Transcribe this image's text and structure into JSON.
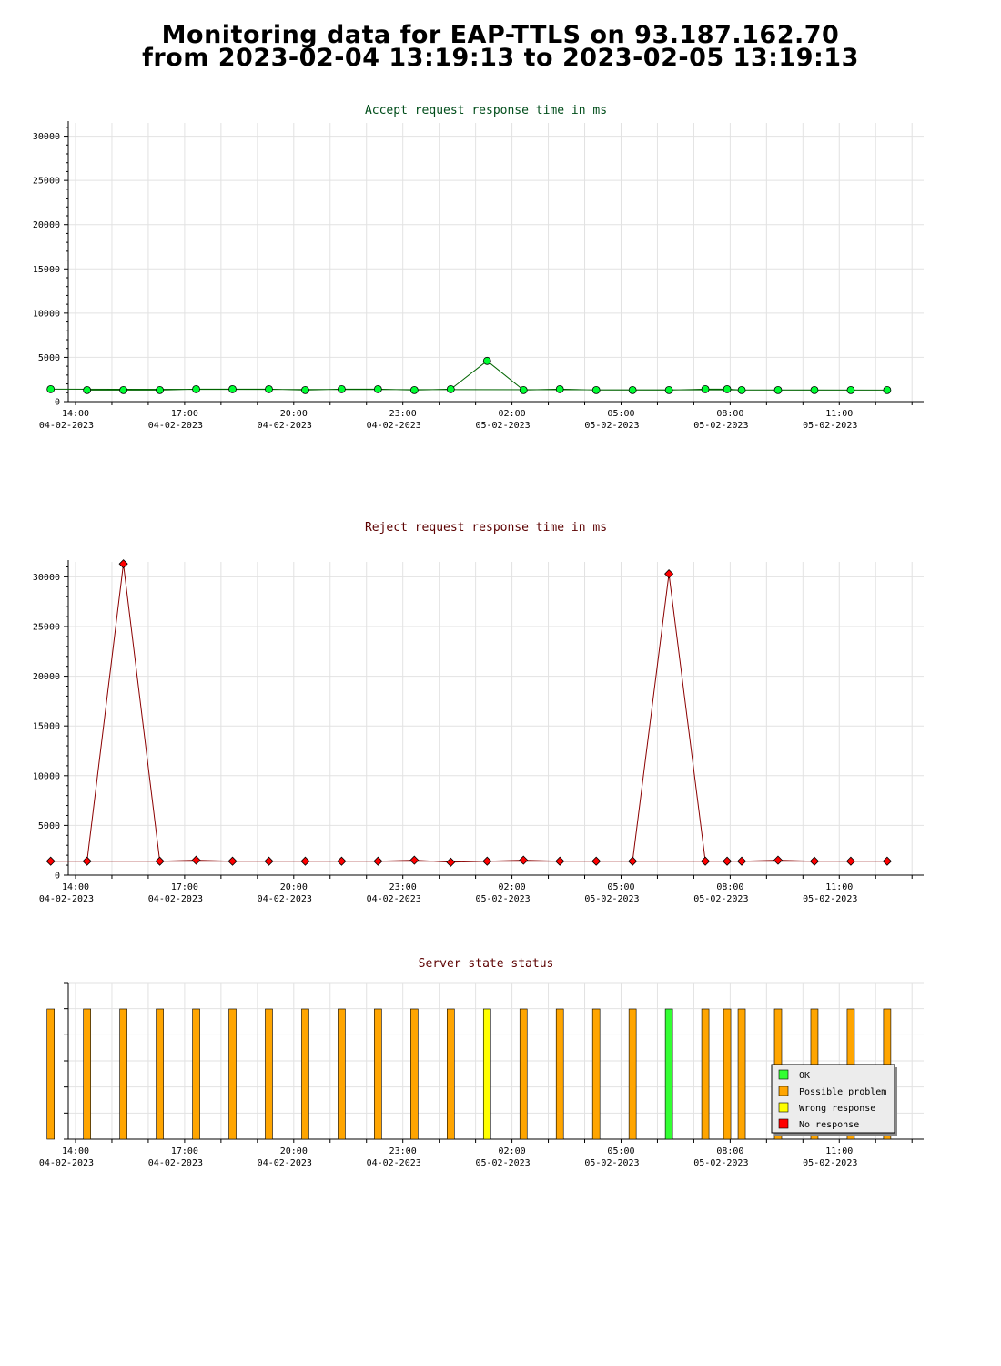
{
  "header": {
    "line1": "Monitoring data for EAP-TTLS on 93.187.162.70",
    "line2": "from 2023-02-04 13:19:13 to 2023-02-05 13:19:13"
  },
  "colors": {
    "accept_line": "#006400",
    "accept_marker": "#00ff33",
    "reject_line": "#8b0000",
    "reject_marker": "#ff0000",
    "title_accept": "#004d1a",
    "title_reject": "#5c0000",
    "ok": "#33ff33",
    "possible_problem": "#ffa500",
    "wrong_response": "#ffff00",
    "no_response": "#ff0000"
  },
  "chart_data": [
    {
      "type": "line",
      "title": "Accept request response time in ms",
      "ylim": [
        0,
        31500
      ],
      "yticks": [
        0,
        5000,
        10000,
        15000,
        20000,
        25000,
        30000
      ],
      "xlim_hours": [
        13.8,
        13.32
      ],
      "xticks": [
        {
          "time": "14:00",
          "date": "04-02-2023"
        },
        {
          "time": "17:00",
          "date": "04-02-2023"
        },
        {
          "time": "20:00",
          "date": "04-02-2023"
        },
        {
          "time": "23:00",
          "date": "04-02-2023"
        },
        {
          "time": "02:00",
          "date": "05-02-2023"
        },
        {
          "time": "05:00",
          "date": "05-02-2023"
        },
        {
          "time": "08:00",
          "date": "05-02-2023"
        },
        {
          "time": "11:00",
          "date": "05-02-2023"
        }
      ],
      "grid": true,
      "x": [
        "14:19",
        "15:19",
        "16:19",
        "17:19",
        "18:19",
        "19:19",
        "20:19",
        "21:19",
        "22:19",
        "23:19",
        "00:19",
        "01:19",
        "02:19",
        "03:19",
        "04:19",
        "05:19",
        "06:19",
        "07:19",
        "07:55",
        "08:19",
        "09:19",
        "10:19",
        "11:19",
        "12:19",
        "13:19"
      ],
      "values": [
        1300,
        1300,
        1300,
        1400,
        1400,
        1400,
        1300,
        1400,
        1400,
        1300,
        1400,
        4600,
        1300,
        1400,
        1300,
        1300,
        1300,
        1400,
        1400,
        1300,
        1300,
        1300,
        1300,
        1300,
        1400
      ]
    },
    {
      "type": "line",
      "title": "Reject request response time in ms",
      "ylim": [
        0,
        31500
      ],
      "yticks": [
        0,
        5000,
        10000,
        15000,
        20000,
        25000,
        30000
      ],
      "grid": true,
      "x": [
        "14:19",
        "15:19",
        "16:19",
        "17:19",
        "18:19",
        "19:19",
        "20:19",
        "21:19",
        "22:19",
        "23:19",
        "00:19",
        "01:19",
        "02:19",
        "03:19",
        "04:19",
        "05:19",
        "06:19",
        "07:19",
        "07:55",
        "08:19",
        "09:19",
        "10:19",
        "11:19",
        "12:19",
        "13:19"
      ],
      "values": [
        1400,
        31300,
        1400,
        1500,
        1400,
        1400,
        1400,
        1400,
        1400,
        1500,
        1300,
        1400,
        1500,
        1400,
        1400,
        1400,
        30300,
        1400,
        1400,
        1400,
        1500,
        1400,
        1400,
        1400,
        1400
      ]
    },
    {
      "type": "bar",
      "title": "Server state status",
      "x": [
        "14:19",
        "15:19",
        "16:19",
        "17:19",
        "18:19",
        "19:19",
        "20:19",
        "21:19",
        "22:19",
        "23:19",
        "00:19",
        "01:19",
        "02:19",
        "03:19",
        "04:19",
        "05:19",
        "06:19",
        "07:19",
        "07:55",
        "08:19",
        "09:19",
        "10:19",
        "11:19",
        "12:19",
        "13:19"
      ],
      "states": [
        "possible_problem",
        "possible_problem",
        "possible_problem",
        "possible_problem",
        "possible_problem",
        "possible_problem",
        "possible_problem",
        "possible_problem",
        "possible_problem",
        "possible_problem",
        "possible_problem",
        "wrong_response",
        "possible_problem",
        "possible_problem",
        "possible_problem",
        "possible_problem",
        "ok",
        "possible_problem",
        "possible_problem",
        "possible_problem",
        "possible_problem",
        "possible_problem",
        "possible_problem",
        "possible_problem",
        "possible_problem"
      ],
      "legend": [
        {
          "key": "ok",
          "label": "OK"
        },
        {
          "key": "possible_problem",
          "label": "Possible problem"
        },
        {
          "key": "wrong_response",
          "label": "Wrong response"
        },
        {
          "key": "no_response",
          "label": "No response"
        }
      ],
      "legend_position": "bottom-right"
    }
  ]
}
